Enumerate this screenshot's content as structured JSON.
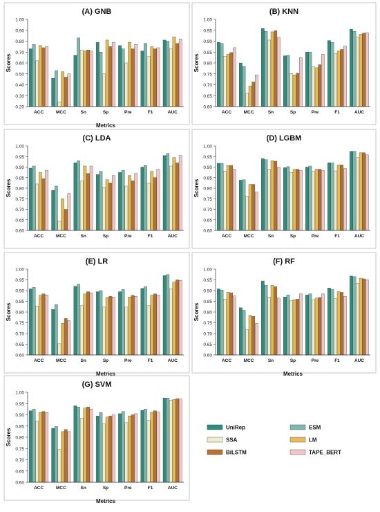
{
  "colors": {
    "UniRep": "#2e8b7d",
    "ESM": "#7fb8ad",
    "SSA": "#f3eccb",
    "LM": "#e6bd54",
    "BiLSTM": "#b8702e",
    "TAPE_BERT": "#eec7c6"
  },
  "legend": {
    "items": [
      {
        "key": "UniRep",
        "label": "UniRep"
      },
      {
        "key": "ESM",
        "label": "ESM"
      },
      {
        "key": "SSA",
        "label": "SSA"
      },
      {
        "key": "LM",
        "label": "LM"
      },
      {
        "key": "BiLSTM",
        "label": "BiLSTM"
      },
      {
        "key": "TAPE_BERT",
        "label": "TAPE_BERT"
      }
    ]
  },
  "chart_data": [
    {
      "type": "bar",
      "title": "(A) GNB",
      "xlabel": "Metrics",
      "ylabel": "Scores",
      "ylim": [
        0.2,
        1.0
      ],
      "yticks": [
        "0.20",
        "0.30",
        "0.40",
        "0.50",
        "0.60",
        "0.70",
        "0.80",
        "0.90",
        "1.00"
      ],
      "categories": [
        "ACC",
        "MCC",
        "Sn",
        "Sp",
        "Pre",
        "F1",
        "AUC"
      ],
      "series": [
        {
          "name": "UniRep",
          "values": [
            0.73,
            0.46,
            0.67,
            0.79,
            0.76,
            0.71,
            0.81
          ]
        },
        {
          "name": "ESM",
          "values": [
            0.77,
            0.53,
            0.83,
            0.7,
            0.73,
            0.78,
            0.8
          ]
        },
        {
          "name": "SSA",
          "values": [
            0.62,
            0.24,
            0.72,
            0.5,
            0.6,
            0.66,
            0.73
          ]
        },
        {
          "name": "LM",
          "values": [
            0.76,
            0.52,
            0.71,
            0.81,
            0.79,
            0.75,
            0.84
          ]
        },
        {
          "name": "BiLSTM",
          "values": [
            0.74,
            0.47,
            0.72,
            0.75,
            0.73,
            0.73,
            0.78
          ]
        },
        {
          "name": "TAPE_BERT",
          "values": [
            0.75,
            0.5,
            0.71,
            0.79,
            0.77,
            0.74,
            0.82
          ]
        }
      ]
    },
    {
      "type": "bar",
      "title": "(B) KNN",
      "xlabel": "",
      "ylabel": "Scores",
      "ylim": [
        0.6,
        1.0
      ],
      "yticks": [
        "0.60",
        "0.65",
        "0.70",
        "0.75",
        "0.80",
        "0.85",
        "0.90",
        "0.95",
        "1.00"
      ],
      "categories": [
        "ACC",
        "MCC",
        "Sn",
        "Sp",
        "Pre",
        "F1",
        "AUC"
      ],
      "series": [
        {
          "name": "UniRep",
          "values": [
            0.895,
            0.8,
            0.958,
            0.833,
            0.85,
            0.903,
            0.955
          ]
        },
        {
          "name": "ESM",
          "values": [
            0.89,
            0.785,
            0.945,
            0.835,
            0.85,
            0.895,
            0.945
          ]
        },
        {
          "name": "SSA",
          "values": [
            0.83,
            0.662,
            0.905,
            0.752,
            0.783,
            0.842,
            0.918
          ]
        },
        {
          "name": "LM",
          "values": [
            0.84,
            0.695,
            0.943,
            0.745,
            0.778,
            0.855,
            0.932
          ]
        },
        {
          "name": "BiLSTM",
          "values": [
            0.848,
            0.713,
            0.948,
            0.753,
            0.792,
            0.862,
            0.937
          ]
        },
        {
          "name": "TAPE_BERT",
          "values": [
            0.87,
            0.745,
            0.918,
            0.825,
            0.84,
            0.878,
            0.938
          ]
        }
      ]
    },
    {
      "type": "bar",
      "title": "(C) LDA",
      "xlabel": "",
      "ylabel": "Scores",
      "ylim": [
        0.6,
        1.0
      ],
      "yticks": [
        "0.60",
        "0.65",
        "0.70",
        "0.75",
        "0.80",
        "0.85",
        "0.90",
        "0.95",
        "1.00"
      ],
      "categories": [
        "ACC",
        "MCC",
        "Sn",
        "Sp",
        "Pre",
        "F1",
        "AUC"
      ],
      "series": [
        {
          "name": "UniRep",
          "values": [
            0.895,
            0.79,
            0.92,
            0.865,
            0.875,
            0.9,
            0.955
          ]
        },
        {
          "name": "ESM",
          "values": [
            0.905,
            0.81,
            0.93,
            0.88,
            0.885,
            0.908,
            0.965
          ]
        },
        {
          "name": "SSA",
          "values": [
            0.82,
            0.645,
            0.835,
            0.805,
            0.81,
            0.825,
            0.905
          ]
        },
        {
          "name": "LM",
          "values": [
            0.875,
            0.75,
            0.905,
            0.84,
            0.86,
            0.88,
            0.945
          ]
        },
        {
          "name": "BiLSTM",
          "values": [
            0.845,
            0.7,
            0.87,
            0.825,
            0.835,
            0.85,
            0.92
          ]
        },
        {
          "name": "TAPE_BERT",
          "values": [
            0.885,
            0.775,
            0.905,
            0.86,
            0.87,
            0.89,
            0.955
          ]
        }
      ]
    },
    {
      "type": "bar",
      "title": "(D) LGBM",
      "xlabel": "",
      "ylabel": "Scores",
      "ylim": [
        0.6,
        1.0
      ],
      "yticks": [
        "0.60",
        "0.65",
        "0.70",
        "0.75",
        "0.80",
        "0.85",
        "0.90",
        "0.95",
        "1.00"
      ],
      "categories": [
        "ACC",
        "MCC",
        "Sn",
        "Sp",
        "Pre",
        "F1",
        "AUC"
      ],
      "series": [
        {
          "name": "UniRep",
          "values": [
            0.918,
            0.838,
            0.94,
            0.897,
            0.9,
            0.92,
            0.975
          ]
        },
        {
          "name": "ESM",
          "values": [
            0.918,
            0.84,
            0.935,
            0.902,
            0.905,
            0.92,
            0.975
          ]
        },
        {
          "name": "SSA",
          "values": [
            0.88,
            0.762,
            0.89,
            0.875,
            0.88,
            0.882,
            0.945
          ]
        },
        {
          "name": "LM",
          "values": [
            0.908,
            0.818,
            0.93,
            0.89,
            0.89,
            0.91,
            0.968
          ]
        },
        {
          "name": "BiLSTM",
          "values": [
            0.908,
            0.818,
            0.928,
            0.89,
            0.89,
            0.91,
            0.968
          ]
        },
        {
          "name": "TAPE_BERT",
          "values": [
            0.89,
            0.782,
            0.9,
            0.885,
            0.885,
            0.893,
            0.958
          ]
        }
      ]
    },
    {
      "type": "bar",
      "title": "(E) LR",
      "xlabel": "Metrics",
      "ylabel": "Scores",
      "ylim": [
        0.6,
        1.0
      ],
      "yticks": [
        "0.60",
        "0.65",
        "0.70",
        "0.75",
        "0.80",
        "0.85",
        "0.90",
        "0.95",
        "1.00"
      ],
      "categories": [
        "ACC",
        "MCC",
        "Sn",
        "Sp",
        "Pre",
        "F1",
        "AUC"
      ],
      "series": [
        {
          "name": "UniRep",
          "values": [
            0.908,
            0.812,
            0.92,
            0.895,
            0.895,
            0.91,
            0.97
          ]
        },
        {
          "name": "ESM",
          "values": [
            0.915,
            0.835,
            0.93,
            0.9,
            0.905,
            0.918,
            0.975
          ]
        },
        {
          "name": "SSA",
          "values": [
            0.828,
            0.652,
            0.83,
            0.823,
            0.823,
            0.83,
            0.908
          ]
        },
        {
          "name": "LM",
          "values": [
            0.878,
            0.748,
            0.885,
            0.868,
            0.87,
            0.878,
            0.94
          ]
        },
        {
          "name": "BiLSTM",
          "values": [
            0.885,
            0.77,
            0.895,
            0.873,
            0.878,
            0.885,
            0.95
          ]
        },
        {
          "name": "TAPE_BERT",
          "values": [
            0.88,
            0.76,
            0.89,
            0.87,
            0.873,
            0.88,
            0.948
          ]
        }
      ]
    },
    {
      "type": "bar",
      "title": "(F) RF",
      "xlabel": "Metrics",
      "ylabel": "Scores",
      "ylim": [
        0.6,
        1.0
      ],
      "yticks": [
        "0.60",
        "0.65",
        "0.70",
        "0.75",
        "0.80",
        "0.85",
        "0.90",
        "0.95",
        "1.00"
      ],
      "categories": [
        "ACC",
        "MCC",
        "Sn",
        "Sp",
        "Pre",
        "F1",
        "AUC"
      ],
      "series": [
        {
          "name": "UniRep",
          "values": [
            0.908,
            0.82,
            0.945,
            0.87,
            0.88,
            0.912,
            0.968
          ]
        },
        {
          "name": "ESM",
          "values": [
            0.903,
            0.808,
            0.925,
            0.88,
            0.885,
            0.905,
            0.965
          ]
        },
        {
          "name": "SSA",
          "values": [
            0.86,
            0.718,
            0.87,
            0.853,
            0.858,
            0.862,
            0.935
          ]
        },
        {
          "name": "LM",
          "values": [
            0.893,
            0.785,
            0.925,
            0.858,
            0.865,
            0.895,
            0.958
          ]
        },
        {
          "name": "BiLSTM",
          "values": [
            0.89,
            0.78,
            0.918,
            0.86,
            0.868,
            0.892,
            0.955
          ]
        },
        {
          "name": "TAPE_BERT",
          "values": [
            0.875,
            0.748,
            0.865,
            0.885,
            0.885,
            0.873,
            0.95
          ]
        }
      ]
    },
    {
      "type": "bar",
      "title": "(G) SVM",
      "xlabel": "Metrics",
      "ylabel": "Scores",
      "ylim": [
        0.6,
        1.0
      ],
      "yticks": [
        "0.60",
        "0.65",
        "0.70",
        "0.75",
        "0.80",
        "0.85",
        "0.90",
        "0.95",
        "1.00"
      ],
      "categories": [
        "ACC",
        "MCC",
        "Sn",
        "Sp",
        "Pre",
        "F1",
        "AUC"
      ],
      "series": [
        {
          "name": "UniRep",
          "values": [
            0.918,
            0.84,
            0.94,
            0.895,
            0.905,
            0.92,
            0.975
          ]
        },
        {
          "name": "ESM",
          "values": [
            0.925,
            0.848,
            0.935,
            0.91,
            0.915,
            0.925,
            0.975
          ]
        },
        {
          "name": "SSA",
          "values": [
            0.872,
            0.745,
            0.885,
            0.86,
            0.865,
            0.875,
            0.965
          ]
        },
        {
          "name": "LM",
          "values": [
            0.91,
            0.825,
            0.93,
            0.89,
            0.895,
            0.912,
            0.968
          ]
        },
        {
          "name": "BiLSTM",
          "values": [
            0.915,
            0.835,
            0.935,
            0.895,
            0.9,
            0.918,
            0.972
          ]
        },
        {
          "name": "TAPE_BERT",
          "values": [
            0.91,
            0.825,
            0.925,
            0.9,
            0.905,
            0.912,
            0.97
          ]
        }
      ]
    }
  ]
}
